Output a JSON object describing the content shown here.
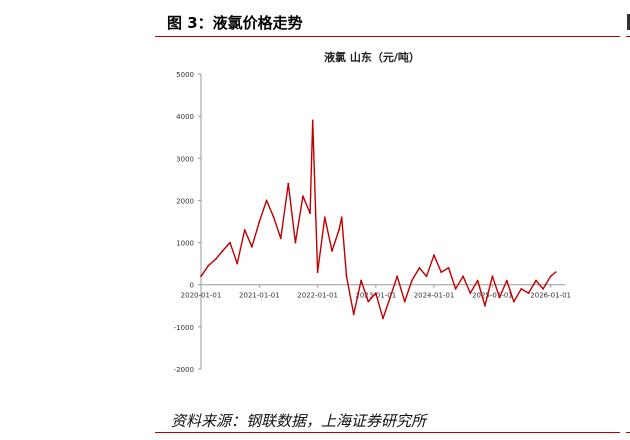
{
  "header": {
    "title": "图 3：液氯价格走势"
  },
  "footer": {
    "source": "资料来源：钢联数据，上海证券研究所"
  },
  "colors": {
    "line": "#c00000",
    "accent": "#c00000",
    "axis": "#999999"
  },
  "chart_data": {
    "type": "line",
    "title": "液氯 山东（元/吨）",
    "xlabel": "",
    "ylabel": "",
    "ylim": [
      -2000,
      5000
    ],
    "yticks": [
      5000,
      4000,
      3000,
      2000,
      1000,
      0,
      -1000,
      -2000
    ],
    "xticks": [
      "2020-01-01",
      "2021-01-01",
      "2022-01-01",
      "2023-01-01",
      "2024-01-01",
      "2025-01-01",
      "2026-01-01"
    ],
    "legend": "none",
    "grid": false,
    "series": [
      {
        "name": "",
        "x": [
          "2020-01-01",
          "2020-02-15",
          "2020-04-01",
          "2020-05-15",
          "2020-07-01",
          "2020-08-15",
          "2020-10-01",
          "2020-11-15",
          "2021-01-01",
          "2021-02-15",
          "2021-04-01",
          "2021-05-15",
          "2021-07-01",
          "2021-08-15",
          "2021-10-01",
          "2021-11-15",
          "2021-12-01",
          "2022-01-01",
          "2022-02-15",
          "2022-04-01",
          "2022-05-15",
          "2022-06-01",
          "2022-07-01",
          "2022-08-15",
          "2022-10-01",
          "2022-11-15",
          "2023-01-01",
          "2023-02-15",
          "2023-04-01",
          "2023-05-15",
          "2023-07-01",
          "2023-08-15",
          "2023-10-01",
          "2023-11-15",
          "2024-01-01",
          "2024-02-15",
          "2024-04-01",
          "2024-05-15",
          "2024-07-01",
          "2024-08-15",
          "2024-10-01",
          "2024-11-15",
          "2025-01-01",
          "2025-02-15",
          "2025-04-01",
          "2025-05-15",
          "2025-07-01",
          "2025-08-15",
          "2025-10-01",
          "2025-11-15",
          "2026-01-01",
          "2026-02-01"
        ],
        "values": [
          200,
          450,
          600,
          800,
          1000,
          500,
          1300,
          900,
          1500,
          2000,
          1600,
          1100,
          2400,
          1000,
          2100,
          1700,
          3900,
          300,
          1600,
          800,
          1300,
          1600,
          200,
          -700,
          100,
          -400,
          -200,
          -800,
          -300,
          200,
          -400,
          100,
          400,
          200,
          700,
          300,
          400,
          -100,
          200,
          -200,
          100,
          -500,
          200,
          -300,
          100,
          -400,
          -100,
          -200,
          100,
          -100,
          200,
          300
        ]
      }
    ]
  }
}
